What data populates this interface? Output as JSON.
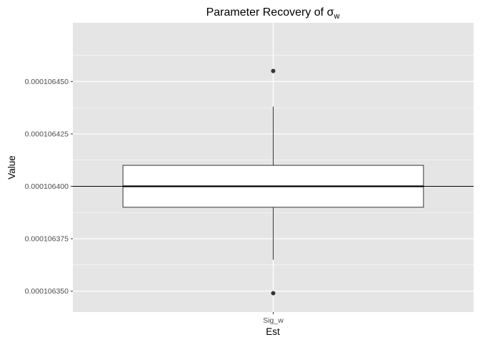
{
  "chart_data": {
    "type": "box",
    "title": {
      "text": "Parameter Recovery of ",
      "symbol": "σ",
      "subscript": "w"
    },
    "xlabel": "Est",
    "ylabel": "Value",
    "categories": [
      "Sig_w"
    ],
    "ylim": [
      0.00010634,
      0.000106478
    ],
    "yticks": [
      0.00010635,
      0.000106375,
      0.0001064,
      0.000106425,
      0.00010645
    ],
    "ytick_labels": [
      "0.000106350",
      "0.000106375",
      "0.000106400",
      "0.000106425",
      "0.000106450"
    ],
    "boxes": [
      {
        "category": "Sig_w",
        "q1": 0.00010639,
        "median": 0.0001064,
        "q3": 0.00010641,
        "whisker_low": 0.000106365,
        "whisker_high": 0.000106438,
        "outliers": [
          0.000106455,
          0.000106349
        ]
      }
    ],
    "reference_line": 0.0001064,
    "grid": true,
    "legend": "none",
    "colors": {
      "panel": "#e5e5e5",
      "grid": "#ffffff",
      "box_fill": "#ffffff",
      "box_stroke": "#333333",
      "median": "#000000",
      "point": "#333333"
    }
  }
}
